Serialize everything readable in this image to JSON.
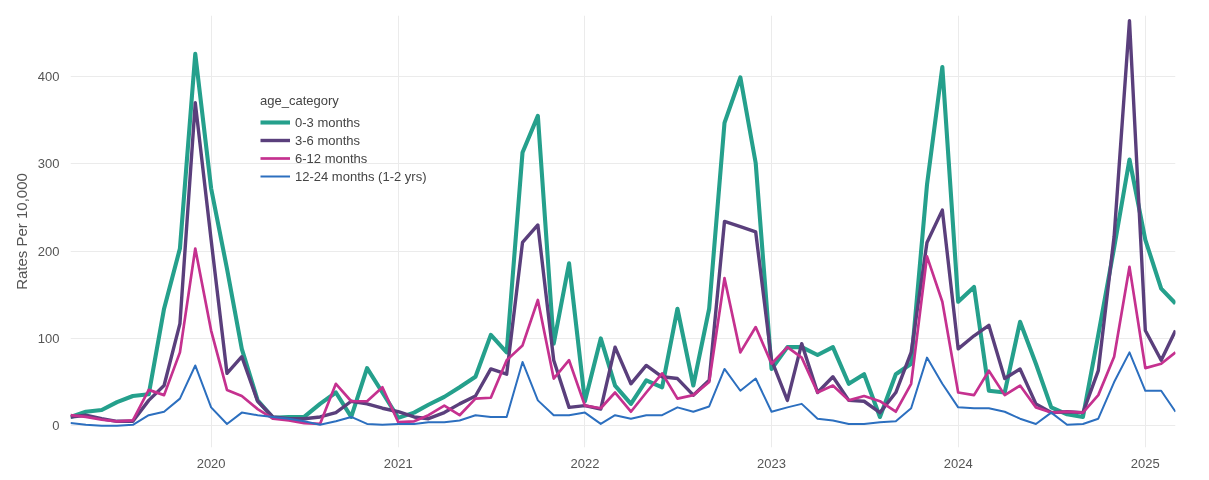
{
  "chart_data": {
    "type": "line",
    "ylabel": "Rates Per 10,000",
    "legend_title": "age_category",
    "legend": "top left",
    "grid": true,
    "xlim": [
      "2019-04-01",
      "2025-03-01"
    ],
    "xticks": [
      "2020",
      "2021",
      "2022",
      "2023",
      "2024",
      "2025"
    ],
    "ylim": [
      -25,
      470
    ],
    "yticks": [
      0,
      100,
      200,
      300,
      400
    ],
    "x": [
      "2019-04",
      "2019-05",
      "2019-06",
      "2019-07",
      "2019-08",
      "2019-09",
      "2019-10",
      "2019-11",
      "2019-12",
      "2020-01",
      "2020-02",
      "2020-03",
      "2020-04",
      "2020-05",
      "2020-06",
      "2020-07",
      "2020-08",
      "2020-09",
      "2020-10",
      "2020-11",
      "2020-12",
      "2021-01",
      "2021-02",
      "2021-03",
      "2021-04",
      "2021-05",
      "2021-06",
      "2021-07",
      "2021-08",
      "2021-09",
      "2021-10",
      "2021-11",
      "2021-12",
      "2022-01",
      "2022-02",
      "2022-03",
      "2022-04",
      "2022-05",
      "2022-06",
      "2022-07",
      "2022-08",
      "2022-09",
      "2022-10",
      "2022-11",
      "2022-12",
      "2023-01",
      "2023-02",
      "2023-03",
      "2023-04",
      "2023-05",
      "2023-06",
      "2023-07",
      "2023-08",
      "2023-09",
      "2023-10",
      "2023-11",
      "2023-12",
      "2024-01",
      "2024-02",
      "2024-03",
      "2024-04",
      "2024-05",
      "2024-06",
      "2024-07",
      "2024-08",
      "2024-09",
      "2024-10",
      "2024-11",
      "2024-12",
      "2025-01",
      "2025-02",
      "2025-03"
    ],
    "series": [
      {
        "name": "0-3 months",
        "color": "#25a08c",
        "values": [
          10,
          16,
          18,
          27,
          34,
          36,
          134,
          203,
          426,
          272,
          180,
          88,
          29,
          9,
          10,
          10,
          25,
          38,
          10,
          66,
          38,
          9,
          15,
          24,
          33,
          44,
          56,
          104,
          84,
          313,
          355,
          94,
          186,
          28,
          100,
          46,
          25,
          52,
          44,
          134,
          46,
          134,
          347,
          399,
          301,
          65,
          90,
          90,
          81,
          90,
          48,
          59,
          10,
          59,
          71,
          276,
          411,
          142,
          159,
          40,
          38,
          119,
          71,
          21,
          13,
          10,
          104,
          204,
          305,
          213,
          157,
          140
        ]
      },
      {
        "name": "3-6 months",
        "color": "#5a3f7c",
        "values": [
          10,
          12,
          8,
          5,
          5,
          29,
          46,
          117,
          370,
          213,
          60,
          79,
          28,
          10,
          8,
          8,
          10,
          15,
          28,
          25,
          20,
          16,
          10,
          8,
          15,
          25,
          34,
          65,
          59,
          210,
          230,
          75,
          21,
          23,
          19,
          90,
          48,
          69,
          56,
          54,
          35,
          52,
          234,
          228,
          222,
          75,
          29,
          94,
          38,
          56,
          29,
          28,
          15,
          38,
          84,
          210,
          247,
          88,
          103,
          115,
          54,
          65,
          25,
          15,
          16,
          15,
          63,
          217,
          464,
          109,
          75,
          109
        ]
      },
      {
        "name": "6-12 months",
        "color": "#c5318f",
        "values": [
          12,
          10,
          7,
          5,
          6,
          41,
          35,
          84,
          203,
          109,
          41,
          34,
          19,
          8,
          6,
          3,
          2,
          48,
          28,
          28,
          44,
          4,
          5,
          12,
          23,
          12,
          31,
          32,
          75,
          92,
          144,
          54,
          75,
          23,
          20,
          38,
          16,
          38,
          60,
          31,
          35,
          50,
          169,
          84,
          113,
          71,
          90,
          78,
          38,
          46,
          29,
          34,
          28,
          16,
          48,
          194,
          142,
          38,
          35,
          63,
          35,
          46,
          21,
          15,
          16,
          15,
          35,
          79,
          182,
          66,
          71,
          84
        ]
      },
      {
        "name": "12-24 months (1-2 yrs)",
        "color": "#2c6fbf",
        "values": [
          3,
          1,
          0,
          0,
          1,
          12,
          16,
          31,
          69,
          21,
          2,
          15,
          12,
          10,
          8,
          5,
          1,
          5,
          10,
          2,
          1,
          2,
          2,
          4,
          4,
          6,
          12,
          10,
          10,
          73,
          29,
          12,
          12,
          15,
          2,
          12,
          8,
          12,
          12,
          21,
          16,
          22,
          65,
          40,
          54,
          16,
          21,
          25,
          8,
          6,
          2,
          2,
          4,
          5,
          20,
          78,
          48,
          21,
          20,
          20,
          16,
          8,
          2,
          15,
          1,
          2,
          8,
          50,
          84,
          40,
          40,
          16
        ]
      }
    ]
  }
}
